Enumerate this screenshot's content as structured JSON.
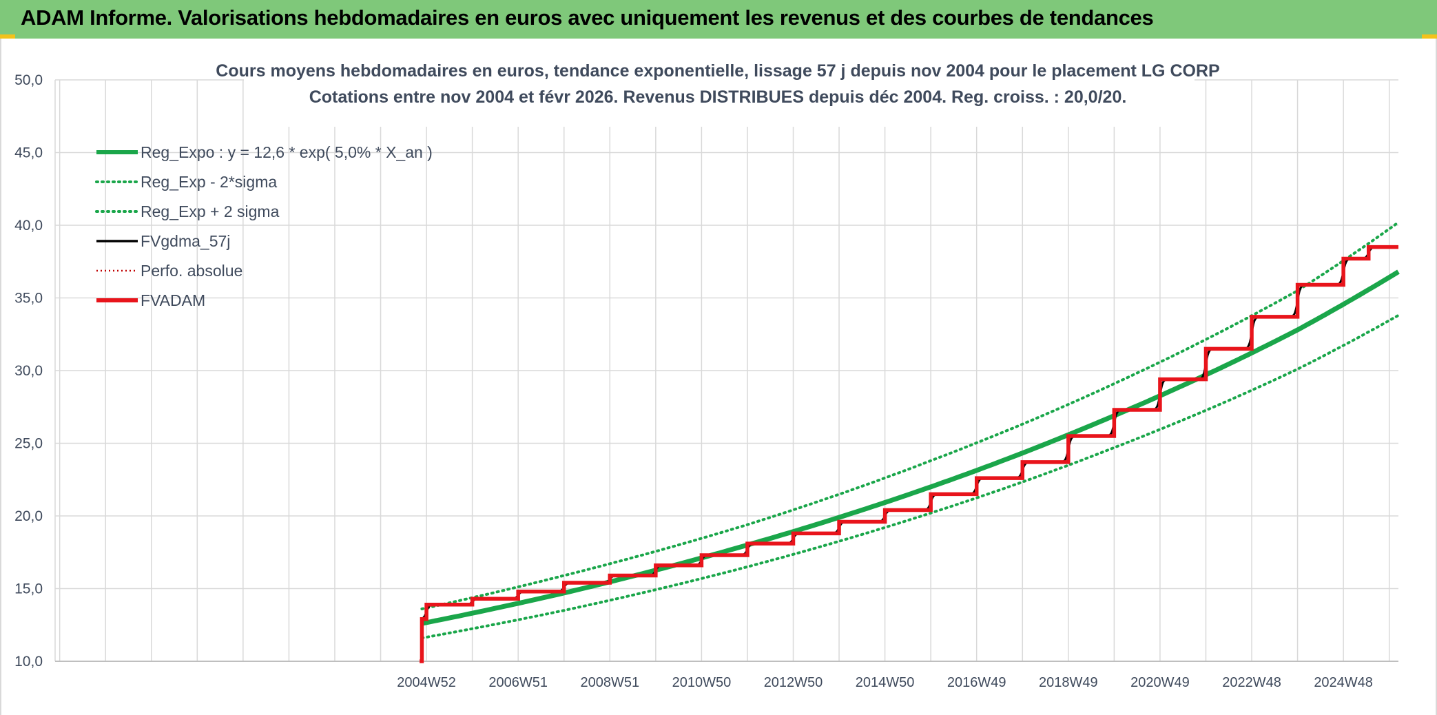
{
  "banner": {
    "title": "ADAM Informe. Valorisations hebdomadaires en euros avec uniquement les revenus et des courbes de tendances"
  },
  "colors": {
    "banner": "#7fc87a",
    "trend": "#1aa64a",
    "fvgdma": "#000000",
    "fvadam": "#e8141b",
    "perf": "#c00000",
    "grid": "#d9d9d9",
    "text": "#3f4a5c"
  },
  "chart_data": {
    "type": "line",
    "title_line1": "Cours moyens hebdomadaires en euros, tendance exponentielle, lissage 57 j depuis nov 2004 pour le placement LG CORP",
    "title_line2": "Cotations entre nov 2004 et févr 2026. Revenus DISTRIBUES depuis déc 2004. Reg. croiss. : 20,0/20.",
    "ylim": [
      10,
      50
    ],
    "y_ticks": [
      "10,0",
      "15,0",
      "20,0",
      "25,0",
      "30,0",
      "35,0",
      "40,0",
      "45,0",
      "50,0"
    ],
    "x_ticks": [
      "2004W52",
      "2006W51",
      "2008W51",
      "2010W50",
      "2012W50",
      "2014W50",
      "2016W49",
      "2018W49",
      "2020W49",
      "2022W48",
      "2024W48"
    ],
    "x_range_years": [
      1996.9,
      2026.2
    ],
    "grid": true,
    "legend_position": "top-left",
    "legend": [
      {
        "key": "reg_expo",
        "label": "Reg_Expo : y = 12,6 * exp( 5,0% *  X_an )",
        "style": "solid-thick",
        "color": "#1aa64a"
      },
      {
        "key": "reg_minus",
        "label": "Reg_Exp - 2*sigma",
        "style": "dotted",
        "color": "#1aa64a"
      },
      {
        "key": "reg_plus",
        "label": "Reg_Exp + 2 sigma",
        "style": "dotted",
        "color": "#1aa64a"
      },
      {
        "key": "fvgdma",
        "label": "FVgdma_57j",
        "style": "solid",
        "color": "#000000"
      },
      {
        "key": "perf",
        "label": "Perfo. absolue",
        "style": "dotted-thin",
        "color": "#c00000"
      },
      {
        "key": "fvadam",
        "label": "FVADAM",
        "style": "solid-thick",
        "color": "#e8141b"
      }
    ],
    "series": [
      {
        "name": "Reg_Expo : y = 12,6 * exp( 5,0% *  X_an )",
        "x": [
          2004.9,
          2008,
          2012,
          2016,
          2020,
          2024,
          2026.2
        ],
        "values": [
          12.6,
          14.7,
          18.0,
          22.0,
          26.9,
          32.8,
          36.8
        ]
      },
      {
        "name": "Reg_Exp - 2*sigma",
        "x": [
          2004.9,
          2008,
          2012,
          2016,
          2020,
          2024,
          2026.2
        ],
        "values": [
          11.6,
          13.5,
          16.5,
          20.2,
          24.7,
          30.1,
          33.8
        ]
      },
      {
        "name": "Reg_Exp + 2 sigma",
        "x": [
          2004.9,
          2008,
          2012,
          2016,
          2020,
          2024,
          2026.2
        ],
        "values": [
          13.6,
          15.9,
          19.4,
          23.8,
          29.1,
          35.5,
          40.2
        ]
      },
      {
        "name": "FVADAM",
        "start_x": 2004.85,
        "start_value": 10.0,
        "step_x": [
          2004.9,
          2005.0,
          2006.0,
          2007.0,
          2008.0,
          2009.0,
          2010.0,
          2011.0,
          2012.0,
          2013.0,
          2014.0,
          2015.0,
          2016.0,
          2017.0,
          2018.0,
          2019.0,
          2020.0,
          2021.0,
          2022.0,
          2023.0,
          2024.0,
          2025.0,
          2025.55
        ],
        "step_values": [
          12.9,
          13.9,
          14.3,
          14.8,
          15.4,
          15.9,
          16.6,
          17.3,
          18.1,
          18.8,
          19.6,
          20.4,
          21.5,
          22.6,
          23.7,
          25.5,
          27.3,
          29.4,
          31.5,
          33.7,
          35.9,
          37.7,
          38.5
        ],
        "end_x": 2026.2
      }
    ]
  }
}
